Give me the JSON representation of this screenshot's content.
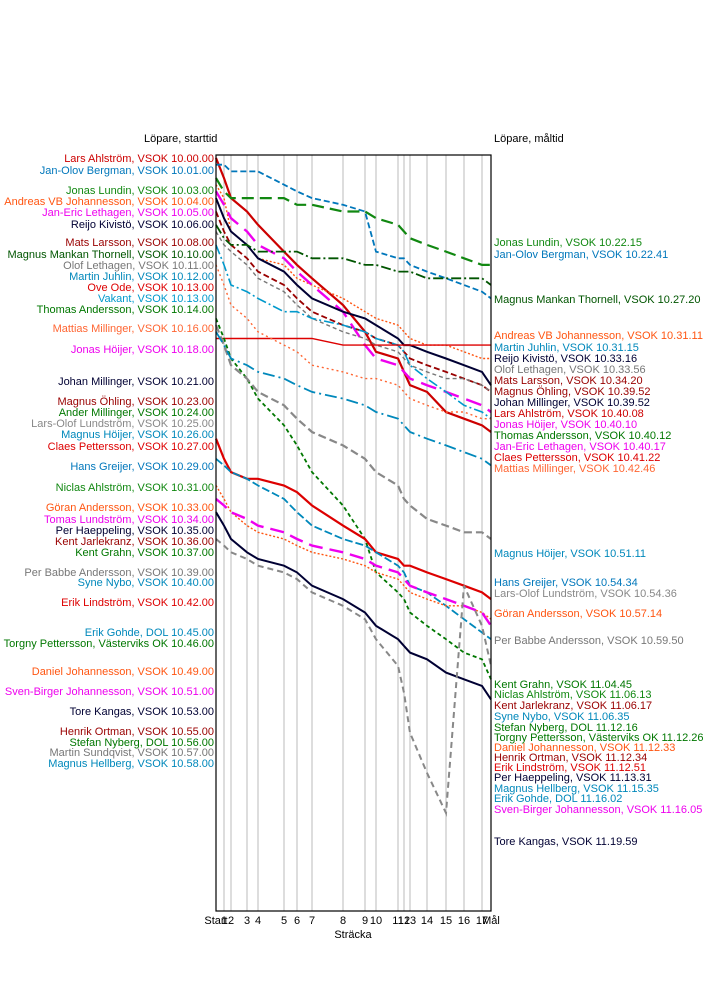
{
  "chart_data": {
    "type": "line",
    "left_header": "Löpare, starttid",
    "right_header": "Löpare, måltid",
    "xlabel": "Sträcka",
    "x_ticks": [
      "Start",
      "1",
      "2",
      "3",
      "4",
      "5",
      "6",
      "7",
      "8",
      "9",
      "10",
      "11",
      "12",
      "13",
      "14",
      "15",
      "16",
      "17",
      "Mål"
    ],
    "start_labels": [
      {
        "text": "Lars Ahlström, VSOK 10.00.00",
        "color": "#cc0000"
      },
      {
        "text": "Jan-Olov Bergman, VSOK 10.01.00",
        "color": "#0077bb"
      },
      {
        "text": "Jonas Lundin, VSOK 10.03.00",
        "color": "#118811"
      },
      {
        "text": "Andreas VB Johannesson, VSOK 10.04.00",
        "color": "#ff5511"
      },
      {
        "text": "Jan-Eric Lethagen, VSOK 10.05.00",
        "color": "#ee00ee"
      },
      {
        "text": "Reijo Kivistö, VSOK 10.06.00",
        "color": "#000033"
      },
      {
        "text": "Mats Larsson, VSOK 10.08.00",
        "color": "#990000"
      },
      {
        "text": "Magnus Mankan Thornell, VSOK 10.10.00",
        "color": "#005500"
      },
      {
        "text": "Olof Lethagen, VSOK 10.11.00",
        "color": "#777777"
      },
      {
        "text": "Martin Juhlin, VSOK 10.12.00",
        "color": "#0088bb"
      },
      {
        "text": "Ove Ode, VSOK 10.13.00",
        "color": "#dd0000"
      },
      {
        "text": "Vakant, VSOK 10.13.00",
        "color": "#0099cc"
      },
      {
        "text": "Thomas Andersson, VSOK 10.14.00",
        "color": "#007700"
      },
      {
        "text": "Mattias Millinger, VSOK 10.16.00",
        "color": "#ff6633"
      },
      {
        "text": "Jonas Höijer, VSOK 10.18.00",
        "color": "#ee00ee"
      },
      {
        "text": "Johan Millinger, VSOK 10.21.00",
        "color": "#000033"
      },
      {
        "text": "Magnus Öhling, VSOK 10.23.00",
        "color": "#990000"
      },
      {
        "text": "Ander Millinger, VSOK 10.24.00",
        "color": "#007700"
      },
      {
        "text": "Lars-Olof Lundström, VSOK 10.25.00",
        "color": "#888888"
      },
      {
        "text": "Magnus Höijer, VSOK 10.26.00",
        "color": "#0088bb"
      },
      {
        "text": "Claes Pettersson, VSOK 10.27.00",
        "color": "#dd0000"
      },
      {
        "text": "Hans Greijer, VSOK 10.29.00",
        "color": "#0077bb"
      },
      {
        "text": "Niclas Ahlström, VSOK 10.31.00",
        "color": "#118811"
      },
      {
        "text": "Göran Andersson, VSOK 10.33.00",
        "color": "#ff5511"
      },
      {
        "text": "Tomas Lundström, VSOK 10.34.00",
        "color": "#ee00ee"
      },
      {
        "text": "Per Haeppeling, VSOK 10.35.00",
        "color": "#000033"
      },
      {
        "text": "Kent Jarlekranz, VSOK 10.36.00",
        "color": "#990000"
      },
      {
        "text": "Kent Grahn, VSOK 10.37.00",
        "color": "#007700"
      },
      {
        "text": "Per Babbe Andersson, VSOK 10.39.00",
        "color": "#777777"
      },
      {
        "text": "Syne Nybo, VSOK 10.40.00",
        "color": "#0088bb"
      },
      {
        "text": "Erik Lindström, VSOK 10.42.00",
        "color": "#dd0000"
      },
      {
        "text": "Erik Gohde, DOL 10.45.00",
        "color": "#0088bb"
      },
      {
        "text": "Torgny Pettersson, Västerviks OK 10.46.00",
        "color": "#007700"
      },
      {
        "text": "Daniel Johannesson, VSOK 10.49.00",
        "color": "#ff5511"
      },
      {
        "text": "Sven-Birger Johannesson, VSOK 10.51.00",
        "color": "#ee00ee"
      },
      {
        "text": "Tore Kangas, VSOK 10.53.00",
        "color": "#000033"
      },
      {
        "text": "Henrik Ortman, VSOK 10.55.00",
        "color": "#990000"
      },
      {
        "text": "Stefan Nyberg, DOL 10.56.00",
        "color": "#007700"
      },
      {
        "text": "Martin Sundqvist, VSOK 10.57.00",
        "color": "#777777"
      },
      {
        "text": "Magnus Hellberg, VSOK 10.58.00",
        "color": "#0088bb"
      }
    ],
    "finish_labels": [
      {
        "text": "Jonas Lundin, VSOK 10.22.15",
        "color": "#118811"
      },
      {
        "text": "Jan-Olov Bergman, VSOK 10.22.41",
        "color": "#0077bb"
      },
      {
        "text": "Magnus Mankan Thornell, VSOK 10.27.20",
        "color": "#005500"
      },
      {
        "text": "Andreas VB Johannesson, VSOK 10.31.11",
        "color": "#ff5511"
      },
      {
        "text": "Martin Juhlin, VSOK 10.31.15",
        "color": "#0088bb"
      },
      {
        "text": "Reijo Kivistö, VSOK 10.33.16",
        "color": "#000033"
      },
      {
        "text": "Olof Lethagen, VSOK 10.33.56",
        "color": "#777777"
      },
      {
        "text": "Mats Larsson, VSOK 10.34.20",
        "color": "#990000"
      },
      {
        "text": "Magnus Öhling, VSOK 10.39.52",
        "color": "#990000"
      },
      {
        "text": "Johan Millinger, VSOK 10.39.52",
        "color": "#000033"
      },
      {
        "text": "Lars Ahlström, VSOK 10.40.08",
        "color": "#cc0000"
      },
      {
        "text": "Jonas Höijer, VSOK 10.40.10",
        "color": "#ee00ee"
      },
      {
        "text": "Thomas Andersson, VSOK 10.40.12",
        "color": "#007700"
      },
      {
        "text": "Jan-Eric Lethagen, VSOK 10.40.17",
        "color": "#ee00ee"
      },
      {
        "text": "Claes Pettersson, VSOK 10.41.22",
        "color": "#dd0000"
      },
      {
        "text": "Mattias Millinger, VSOK 10.42.46",
        "color": "#ff6633"
      },
      {
        "text": "Magnus Höijer, VSOK 10.51.11",
        "color": "#0088bb"
      },
      {
        "text": "Hans Greijer, VSOK 10.54.34",
        "color": "#0077bb"
      },
      {
        "text": "Lars-Olof Lundström, VSOK 10.54.36",
        "color": "#888888"
      },
      {
        "text": "Göran Andersson, VSOK 10.57.14",
        "color": "#ff5511"
      },
      {
        "text": "Per Babbe Andersson, VSOK 10.59.50",
        "color": "#777777"
      },
      {
        "text": "Kent Grahn, VSOK 11.04.45",
        "color": "#007700"
      },
      {
        "text": "Niclas Ahlström, VSOK 11.06.13",
        "color": "#118811"
      },
      {
        "text": "Kent Jarlekranz, VSOK 11.06.17",
        "color": "#990000"
      },
      {
        "text": "Syne Nybo, VSOK 11.06.35",
        "color": "#0088bb"
      },
      {
        "text": "Stefan Nyberg, DOL 11.12.16",
        "color": "#007700"
      },
      {
        "text": "Torgny Pettersson, Västerviks OK 11.12.26",
        "color": "#007700"
      },
      {
        "text": "Daniel Johannesson, VSOK 11.12.33",
        "color": "#ff5511"
      },
      {
        "text": "Henrik Ortman, VSOK 11.12.34",
        "color": "#990000"
      },
      {
        "text": "Erik Lindström, VSOK 11.12.51",
        "color": "#dd0000"
      },
      {
        "text": "Per Haeppeling, VSOK 11.13.31",
        "color": "#000033"
      },
      {
        "text": "Magnus Hellberg, VSOK 11.15.35",
        "color": "#0088bb"
      },
      {
        "text": "Erik Gohde, DOL 11.16.02",
        "color": "#0088bb"
      },
      {
        "text": "Sven-Birger Johannesson, VSOK 11.16.05",
        "color": "#ee00ee"
      },
      {
        "text": "Tore Kangas, VSOK 11.19.59",
        "color": "#000033"
      }
    ],
    "series": [
      {
        "color": "#cc0000",
        "dash": "",
        "width": 2.2,
        "values": [
          10.0,
          10.03,
          10.06,
          10.08,
          10.1,
          10.14,
          10.16,
          10.18,
          10.22,
          10.26,
          10.29,
          10.3,
          10.32,
          10.34,
          10.35,
          10.38,
          10.39,
          10.4,
          10.41
        ]
      },
      {
        "color": "#0077bb",
        "dash": "6,3",
        "width": 1.8,
        "values": [
          10.01,
          10.01,
          10.02,
          10.02,
          10.02,
          10.04,
          10.05,
          10.06,
          10.07,
          10.08,
          10.14,
          10.15,
          10.15,
          10.16,
          10.17,
          10.18,
          10.19,
          10.2,
          10.21
        ]
      },
      {
        "color": "#118811",
        "dash": "12,6",
        "width": 2.2,
        "values": [
          10.03,
          10.05,
          10.06,
          10.06,
          10.06,
          10.06,
          10.07,
          10.07,
          10.08,
          10.08,
          10.09,
          10.1,
          10.11,
          10.12,
          10.13,
          10.14,
          10.15,
          10.16,
          10.16
        ]
      },
      {
        "color": "#ff5511",
        "dash": "2,2",
        "width": 1.4,
        "values": [
          10.04,
          10.06,
          10.11,
          10.13,
          10.15,
          10.16,
          10.18,
          10.19,
          10.21,
          10.23,
          10.24,
          10.25,
          10.26,
          10.27,
          10.28,
          10.28,
          10.29,
          10.3,
          10.3
        ]
      },
      {
        "color": "#ee00ee",
        "dash": "16,8",
        "width": 2.4,
        "values": [
          10.05,
          10.07,
          10.09,
          10.11,
          10.13,
          10.15,
          10.17,
          10.19,
          10.23,
          10.28,
          10.3,
          10.31,
          10.32,
          10.33,
          10.34,
          10.35,
          10.36,
          10.37,
          10.38
        ]
      },
      {
        "color": "#000033",
        "dash": "",
        "width": 2.0,
        "values": [
          10.06,
          10.09,
          10.11,
          10.13,
          10.15,
          10.17,
          10.19,
          10.21,
          10.23,
          10.24,
          10.25,
          10.27,
          10.28,
          10.28,
          10.29,
          10.3,
          10.31,
          10.32,
          10.34
        ]
      },
      {
        "color": "#990000",
        "dash": "6,3",
        "width": 1.8,
        "values": [
          10.08,
          10.11,
          10.13,
          10.15,
          10.17,
          10.19,
          10.21,
          10.23,
          10.25,
          10.26,
          10.27,
          10.28,
          10.29,
          10.3,
          10.31,
          10.32,
          10.33,
          10.34,
          10.35
        ]
      },
      {
        "color": "#005500",
        "dash": "10,3,2,3",
        "width": 1.8,
        "values": [
          10.1,
          10.12,
          10.13,
          10.13,
          10.14,
          10.14,
          10.14,
          10.15,
          10.15,
          10.16,
          10.16,
          10.17,
          10.17,
          10.17,
          10.18,
          10.18,
          10.18,
          10.18,
          10.19
        ]
      },
      {
        "color": "#777777",
        "dash": "4,3",
        "width": 1.4,
        "values": [
          10.11,
          10.13,
          10.14,
          10.16,
          10.18,
          10.2,
          10.22,
          10.24,
          10.26,
          10.27,
          10.28,
          10.29,
          10.3,
          10.31,
          10.32,
          10.33,
          10.33,
          10.34,
          10.35
        ]
      },
      {
        "color": "#0099cc",
        "dash": "10,3,2,3",
        "width": 1.6,
        "values": [
          10.13,
          10.16,
          10.19,
          10.2,
          10.21,
          10.23,
          10.23,
          10.24,
          10.25,
          10.26,
          10.27,
          10.28,
          10.29,
          10.31,
          10.33,
          10.35,
          10.37,
          10.38,
          10.39
        ]
      },
      {
        "color": "#dd0000",
        "dash": "",
        "width": 1.4,
        "values": [
          10.27,
          10.27,
          10.27,
          10.27,
          10.27,
          10.27,
          10.27,
          10.27,
          10.28,
          10.28,
          10.28,
          10.28,
          10.28,
          10.28,
          10.28,
          10.28,
          10.28,
          10.28,
          10.28
        ]
      },
      {
        "color": "#ff6633",
        "dash": "2,3",
        "width": 1.4,
        "values": [
          10.16,
          10.19,
          10.22,
          10.24,
          10.26,
          10.28,
          10.29,
          10.31,
          10.32,
          10.33,
          10.33,
          10.34,
          10.35,
          10.36,
          10.37,
          10.38,
          10.38,
          10.39,
          10.39
        ]
      },
      {
        "color": "#007700",
        "dash": "4,3",
        "width": 1.8,
        "values": [
          10.24,
          10.27,
          10.3,
          10.33,
          10.36,
          10.4,
          10.43,
          10.47,
          10.52,
          10.57,
          10.62,
          10.65,
          10.66,
          10.68,
          10.7,
          10.72,
          10.74,
          10.75,
          10.78
        ]
      },
      {
        "color": "#888888",
        "dash": "8,4",
        "width": 2.2,
        "values": [
          10.25,
          10.28,
          10.31,
          10.33,
          10.35,
          10.37,
          10.39,
          10.41,
          10.43,
          10.45,
          10.47,
          10.49,
          10.51,
          10.52,
          10.54,
          10.55,
          10.56,
          10.56,
          10.57
        ]
      },
      {
        "color": "#0088bb",
        "dash": "12,4,2,4",
        "width": 1.8,
        "values": [
          10.26,
          10.28,
          10.3,
          10.31,
          10.32,
          10.33,
          10.34,
          10.35,
          10.36,
          10.37,
          10.38,
          10.39,
          10.4,
          10.41,
          10.42,
          10.43,
          10.44,
          10.45,
          10.46
        ]
      },
      {
        "color": "#dd0000",
        "dash": "",
        "width": 2.2,
        "values": [
          10.42,
          10.45,
          10.47,
          10.48,
          10.48,
          10.49,
          10.5,
          10.52,
          10.55,
          10.57,
          10.59,
          10.6,
          10.61,
          10.61,
          10.62,
          10.63,
          10.64,
          10.65,
          10.66
        ]
      },
      {
        "color": "#0088bb",
        "dash": "8,3",
        "width": 1.8,
        "values": [
          10.45,
          10.46,
          10.47,
          10.48,
          10.49,
          10.51,
          10.53,
          10.55,
          10.57,
          10.58,
          10.59,
          10.61,
          10.62,
          10.64,
          10.65,
          10.67,
          10.69,
          10.71,
          10.72
        ]
      },
      {
        "color": "#ff5511",
        "dash": "2,2",
        "width": 1.4,
        "values": [
          10.49,
          10.51,
          10.53,
          10.55,
          10.56,
          10.57,
          10.58,
          10.59,
          10.6,
          10.61,
          10.62,
          10.63,
          10.64,
          10.65,
          10.66,
          10.67,
          10.67,
          10.68,
          10.69
        ]
      },
      {
        "color": "#ee00ee",
        "dash": "14,7",
        "width": 2.4,
        "values": [
          10.51,
          10.52,
          10.53,
          10.54,
          10.55,
          10.56,
          10.57,
          10.58,
          10.59,
          10.6,
          10.61,
          10.62,
          10.63,
          10.64,
          10.65,
          10.66,
          10.67,
          10.68,
          10.7
        ]
      },
      {
        "color": "#000033",
        "dash": "",
        "width": 2.0,
        "values": [
          10.53,
          10.55,
          10.57,
          10.59,
          10.6,
          10.61,
          10.62,
          10.64,
          10.66,
          10.68,
          10.7,
          10.72,
          10.73,
          10.74,
          10.75,
          10.77,
          10.78,
          10.79,
          10.81
        ]
      },
      {
        "color": "#888888",
        "dash": "6,4",
        "width": 2.0,
        "values": [
          10.57,
          10.58,
          10.59,
          10.6,
          10.61,
          10.62,
          10.63,
          10.65,
          10.67,
          10.69,
          10.72,
          10.76,
          10.8,
          10.86,
          10.92,
          10.98,
          11.04,
          11.1,
          11.16
        ]
      }
    ]
  }
}
